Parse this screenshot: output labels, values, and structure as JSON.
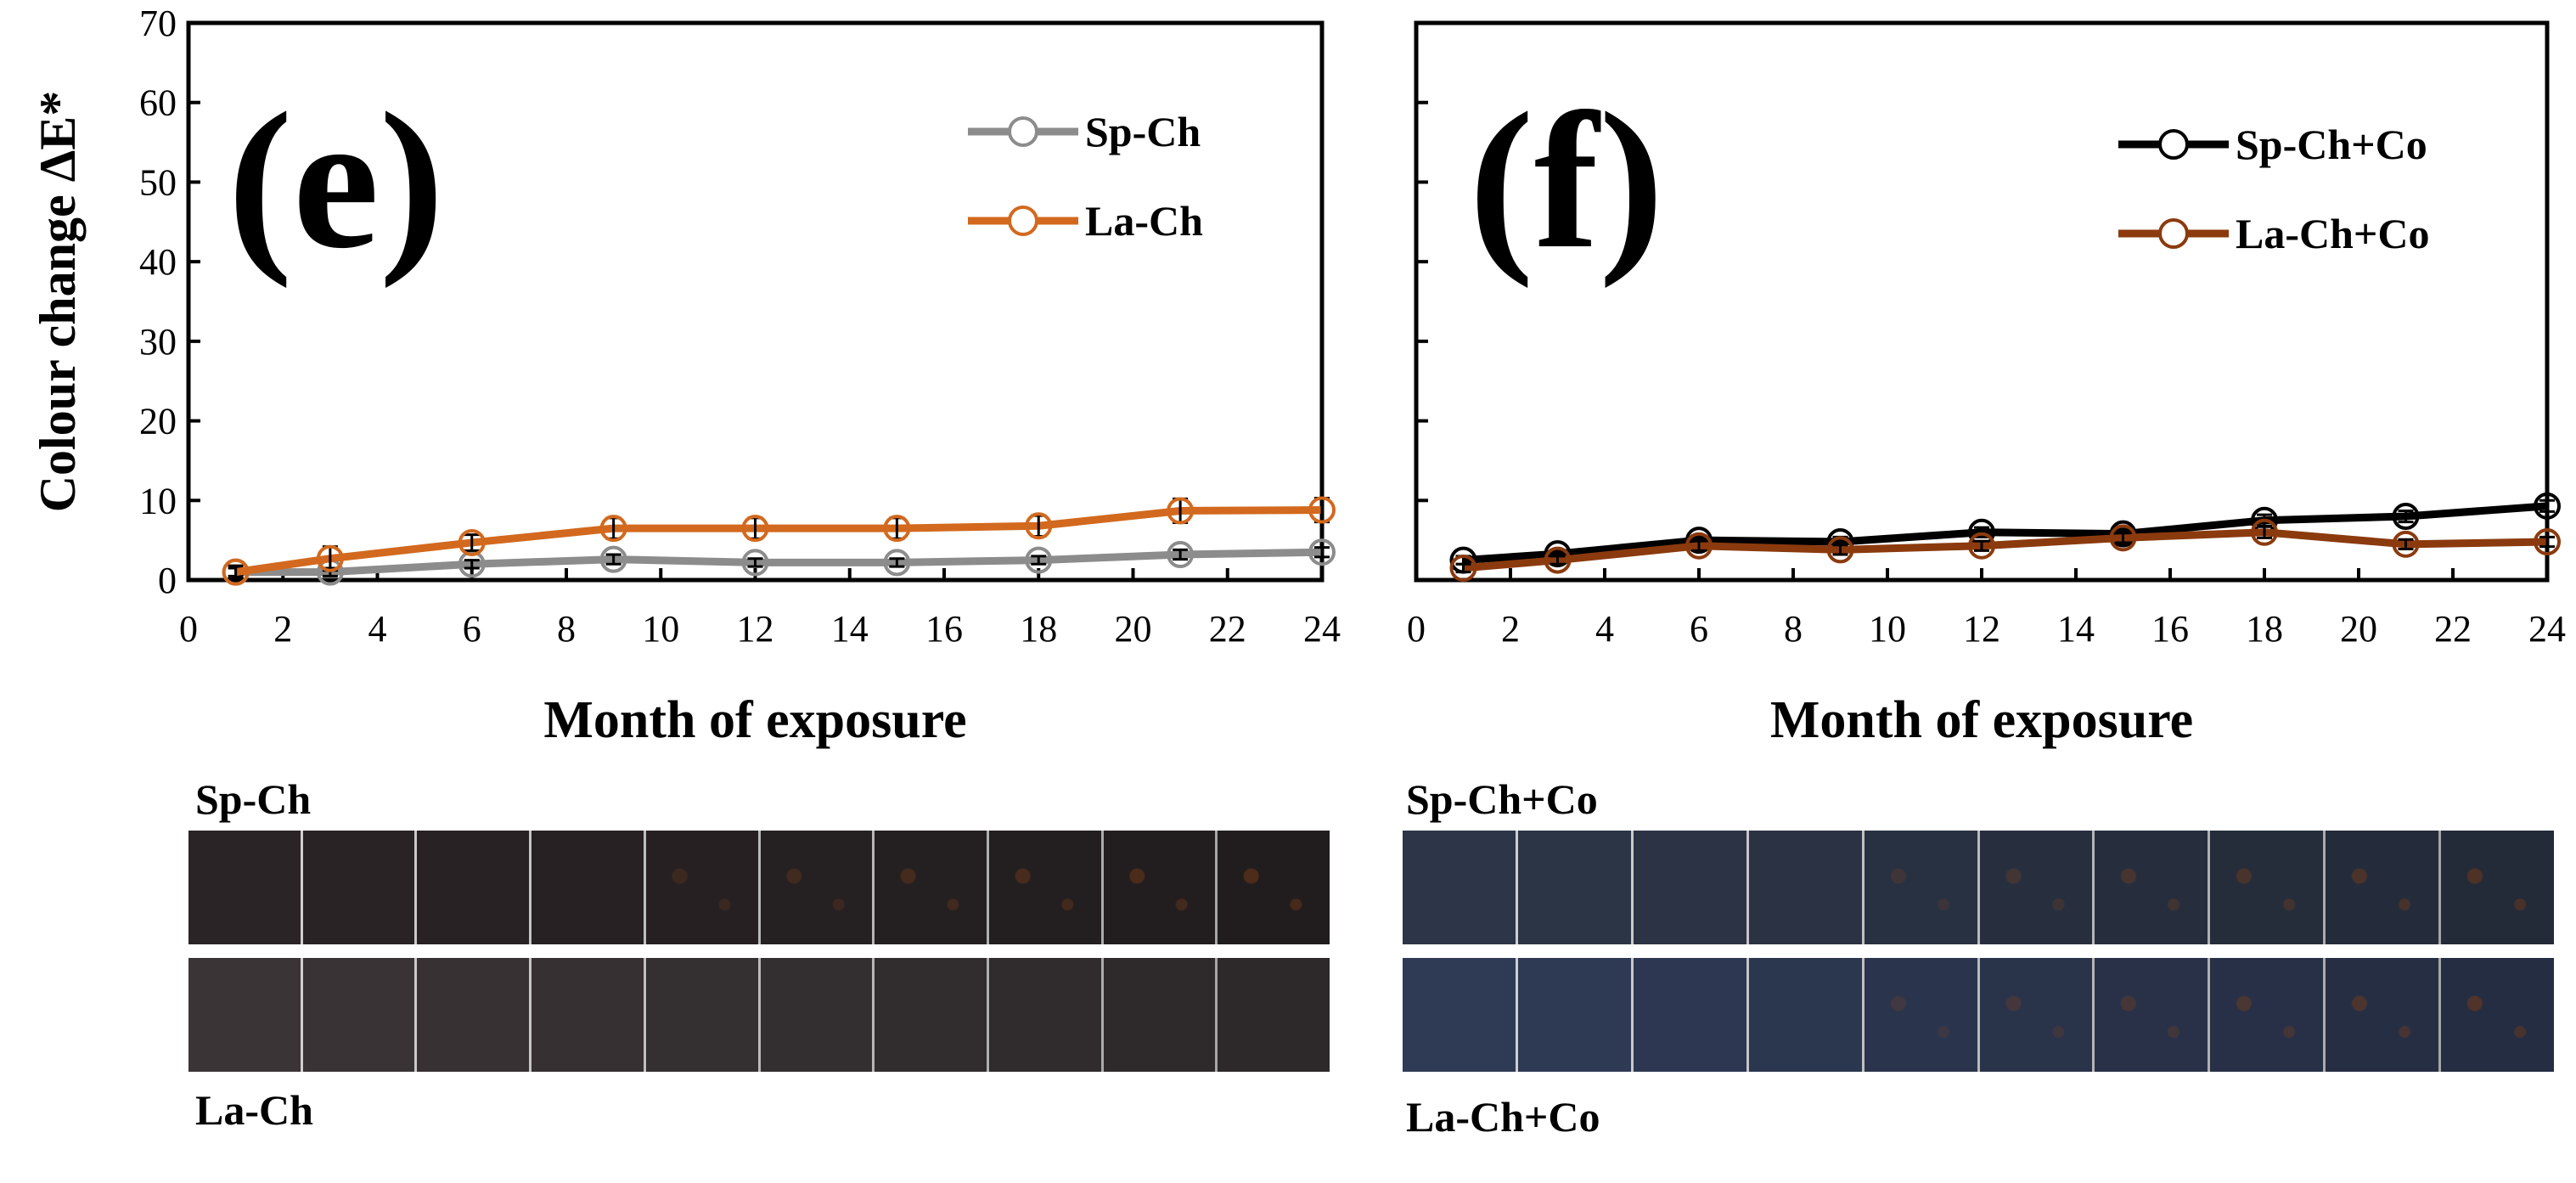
{
  "chart_data": [
    {
      "type": "line",
      "panel_label": "(e)",
      "ylabel": "Colour change ΔE*",
      "xlabel": "Month of exposure",
      "xlim": [
        0,
        24
      ],
      "ylim": [
        0,
        70
      ],
      "xticks": [
        0,
        2,
        4,
        6,
        8,
        10,
        12,
        14,
        16,
        18,
        20,
        22,
        24
      ],
      "yticks": [
        0,
        10,
        20,
        30,
        40,
        50,
        60,
        70
      ],
      "legend_position": "top-right",
      "x": [
        1,
        3,
        6,
        9,
        12,
        15,
        18,
        21,
        24
      ],
      "series": [
        {
          "name": "Sp-Ch",
          "color": "#8c8c8c",
          "marker": "open-circle",
          "values": [
            1.0,
            1.0,
            2.0,
            2.6,
            2.2,
            2.2,
            2.5,
            3.2,
            3.5
          ],
          "errors": [
            0.5,
            0.5,
            0.5,
            0.6,
            0.5,
            0.5,
            0.5,
            0.6,
            0.6
          ]
        },
        {
          "name": "La-Ch",
          "color": "#d2691e",
          "marker": "open-circle",
          "values": [
            1.0,
            2.7,
            4.7,
            6.5,
            6.5,
            6.5,
            6.8,
            8.7,
            8.8
          ],
          "errors": [
            0.8,
            1.5,
            1.0,
            1.3,
            1.3,
            1.3,
            1.3,
            1.5,
            1.5
          ]
        }
      ]
    },
    {
      "type": "line",
      "panel_label": "(f)",
      "ylabel": "",
      "xlabel": "Month of exposure",
      "xlim": [
        0,
        24
      ],
      "ylim": [
        0,
        70
      ],
      "xticks": [
        0,
        2,
        4,
        6,
        8,
        10,
        12,
        14,
        16,
        18,
        20,
        22,
        24
      ],
      "yticks": [
        0,
        10,
        20,
        30,
        40,
        50,
        60,
        70
      ],
      "legend_position": "top-right",
      "x": [
        1,
        3,
        6,
        9,
        12,
        15,
        18,
        21,
        24
      ],
      "series": [
        {
          "name": "Sp-Ch+Co",
          "color": "#000000",
          "marker": "open-circle",
          "values": [
            2.5,
            3.3,
            5.0,
            4.8,
            6.0,
            5.8,
            7.5,
            8.0,
            9.3
          ],
          "errors": [
            0.5,
            0.5,
            0.6,
            0.6,
            0.6,
            0.6,
            0.7,
            0.7,
            0.7
          ]
        },
        {
          "name": "La-Ch+Co",
          "color": "#8b3a0e",
          "marker": "open-circle",
          "values": [
            1.5,
            2.5,
            4.3,
            3.8,
            4.3,
            5.3,
            6.0,
            4.5,
            4.8
          ],
          "errors": [
            0.5,
            0.5,
            0.6,
            0.6,
            0.6,
            0.6,
            0.7,
            0.6,
            0.6
          ]
        }
      ]
    }
  ],
  "photo_strips": {
    "left_top_label": "Sp-Ch",
    "left_bottom_label": "La-Ch",
    "right_top_label": "Sp-Ch+Co",
    "right_bottom_label": "La-Ch+Co",
    "left_top_color": "#2a2426",
    "left_bottom_color": "#3a3436",
    "right_top_color": "#2d3648",
    "right_bottom_color": "#2f3a55"
  }
}
